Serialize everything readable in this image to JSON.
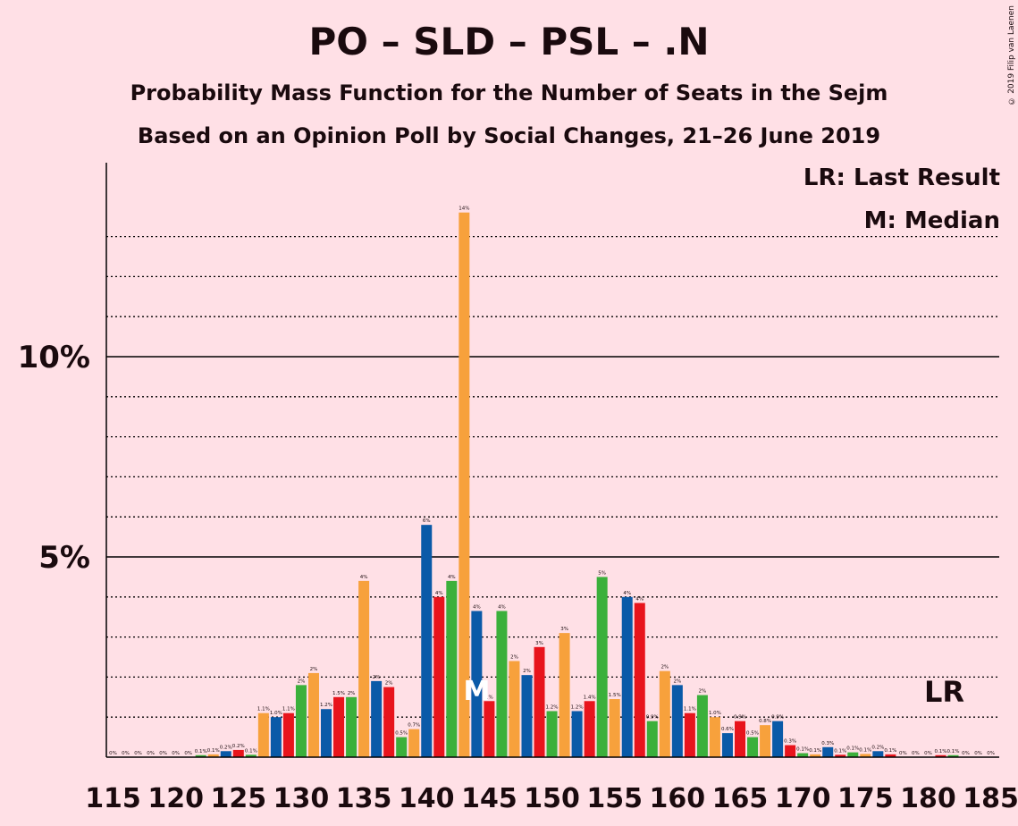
{
  "title": "PO – SLD – PSL – .N",
  "subtitle1": "Probability Mass Function for the Number of Seats in the Sejm",
  "subtitle2": "Based on an Opinion Poll by Social Changes, 21–26 June 2019",
  "copyright": "© 2019 Filip van Laenen",
  "legend": {
    "last_result": "LR: Last Result",
    "median": "M: Median"
  },
  "colors": {
    "background": "#FFE0E6",
    "po": "#0A5AA8",
    "sld": "#E8141C",
    "psl": "#3BB03B",
    "n": "#F7A13C",
    "median_mark": "#FFFFFF"
  },
  "chart_data": {
    "type": "bar",
    "xlabel": "",
    "ylabel": "",
    "ylim": [
      0,
      14.8
    ],
    "y_ticks": [
      {
        "value": 5,
        "label": "5%"
      },
      {
        "value": 10,
        "label": "10%"
      }
    ],
    "y_minor_gridlines": [
      1,
      2,
      3,
      4,
      6,
      7,
      8,
      9,
      11,
      12,
      13
    ],
    "x_tick_labels": [
      "115",
      "120",
      "125",
      "130",
      "135",
      "140",
      "145",
      "150",
      "155",
      "160",
      "165",
      "170",
      "175",
      "180",
      "185"
    ],
    "x_tick_values": [
      115,
      120,
      125,
      130,
      135,
      140,
      145,
      150,
      155,
      160,
      165,
      170,
      175,
      180,
      185
    ],
    "median": 144,
    "median_label": "M",
    "last_result": 182,
    "last_result_label": "LR",
    "bars": [
      {
        "x": 115,
        "value": 0,
        "label": "0%"
      },
      {
        "x": 116,
        "value": 0,
        "label": "0%"
      },
      {
        "x": 117,
        "value": 0,
        "label": "0%"
      },
      {
        "x": 118,
        "value": 0,
        "label": "0%"
      },
      {
        "x": 119,
        "value": 0,
        "label": "0%"
      },
      {
        "x": 120,
        "value": 0,
        "label": "0%"
      },
      {
        "x": 121,
        "value": 0,
        "label": "0%"
      },
      {
        "x": 122,
        "value": 0.05,
        "label": "0.1%"
      },
      {
        "x": 123,
        "value": 0.07,
        "label": "0.1%"
      },
      {
        "x": 124,
        "value": 0.15,
        "label": "0.2%"
      },
      {
        "x": 125,
        "value": 0.18,
        "label": "0.2%"
      },
      {
        "x": 126,
        "value": 0.06,
        "label": "0.1%"
      },
      {
        "x": 127,
        "value": 1.1,
        "label": "1.1%"
      },
      {
        "x": 128,
        "value": 1.0,
        "label": "1.0%"
      },
      {
        "x": 129,
        "value": 1.1,
        "label": "1.1%"
      },
      {
        "x": 130,
        "value": 1.8,
        "label": "2%"
      },
      {
        "x": 131,
        "value": 2.1,
        "label": "2%"
      },
      {
        "x": 132,
        "value": 1.2,
        "label": "1.2%"
      },
      {
        "x": 133,
        "value": 1.5,
        "label": "1.5%"
      },
      {
        "x": 134,
        "value": 1.5,
        "label": "2%"
      },
      {
        "x": 135,
        "value": 4.4,
        "label": "4%"
      },
      {
        "x": 136,
        "value": 1.9,
        "label": "2%"
      },
      {
        "x": 137,
        "value": 1.75,
        "label": "2%"
      },
      {
        "x": 138,
        "value": 0.5,
        "label": "0.5%"
      },
      {
        "x": 139,
        "value": 0.7,
        "label": "0.7%"
      },
      {
        "x": 140,
        "value": 5.8,
        "label": "6%"
      },
      {
        "x": 141,
        "value": 4.0,
        "label": "4%"
      },
      {
        "x": 142,
        "value": 4.4,
        "label": "4%"
      },
      {
        "x": 143,
        "value": 13.6,
        "label": "14%"
      },
      {
        "x": 144,
        "value": 3.65,
        "label": "4%"
      },
      {
        "x": 145,
        "value": 1.4,
        "label": "1%"
      },
      {
        "x": 146,
        "value": 3.65,
        "label": "4%"
      },
      {
        "x": 147,
        "value": 2.4,
        "label": "2%"
      },
      {
        "x": 148,
        "value": 2.05,
        "label": "2%"
      },
      {
        "x": 149,
        "value": 2.75,
        "label": "3%"
      },
      {
        "x": 150,
        "value": 1.15,
        "label": "1.2%"
      },
      {
        "x": 151,
        "value": 3.1,
        "label": "3%"
      },
      {
        "x": 152,
        "value": 1.15,
        "label": "1.2%"
      },
      {
        "x": 153,
        "value": 1.4,
        "label": "1.4%"
      },
      {
        "x": 154,
        "value": 4.5,
        "label": "5%"
      },
      {
        "x": 155,
        "value": 1.45,
        "label": "1.5%"
      },
      {
        "x": 156,
        "value": 4.0,
        "label": "4%"
      },
      {
        "x": 157,
        "value": 3.85,
        "label": "4%"
      },
      {
        "x": 158,
        "value": 0.9,
        "label": "0.9%"
      },
      {
        "x": 159,
        "value": 2.15,
        "label": "2%"
      },
      {
        "x": 160,
        "value": 1.8,
        "label": "2%"
      },
      {
        "x": 161,
        "value": 1.1,
        "label": "1.1%"
      },
      {
        "x": 162,
        "value": 1.55,
        "label": "2%"
      },
      {
        "x": 163,
        "value": 1.0,
        "label": "1.0%"
      },
      {
        "x": 164,
        "value": 0.6,
        "label": "0.6%"
      },
      {
        "x": 165,
        "value": 0.9,
        "label": "0.9%"
      },
      {
        "x": 166,
        "value": 0.5,
        "label": "0.5%"
      },
      {
        "x": 167,
        "value": 0.8,
        "label": "0.8%"
      },
      {
        "x": 168,
        "value": 0.9,
        "label": "0.9%"
      },
      {
        "x": 169,
        "value": 0.3,
        "label": "0.3%"
      },
      {
        "x": 170,
        "value": 0.1,
        "label": "0.1%"
      },
      {
        "x": 171,
        "value": 0.07,
        "label": "0.1%"
      },
      {
        "x": 172,
        "value": 0.25,
        "label": "0.3%"
      },
      {
        "x": 173,
        "value": 0.06,
        "label": "0.1%"
      },
      {
        "x": 174,
        "value": 0.12,
        "label": "0.1%"
      },
      {
        "x": 175,
        "value": 0.08,
        "label": "0.1%"
      },
      {
        "x": 176,
        "value": 0.15,
        "label": "0.2%"
      },
      {
        "x": 177,
        "value": 0.07,
        "label": "0.1%"
      },
      {
        "x": 178,
        "value": 0,
        "label": "0%"
      },
      {
        "x": 179,
        "value": 0,
        "label": "0%"
      },
      {
        "x": 180,
        "value": 0,
        "label": "0%"
      },
      {
        "x": 181,
        "value": 0.05,
        "label": "0.1%"
      },
      {
        "x": 182,
        "value": 0.05,
        "label": "0.1%"
      },
      {
        "x": 183,
        "value": 0,
        "label": "0%"
      },
      {
        "x": 184,
        "value": 0,
        "label": "0%"
      },
      {
        "x": 185,
        "value": 0,
        "label": "0%"
      }
    ]
  }
}
